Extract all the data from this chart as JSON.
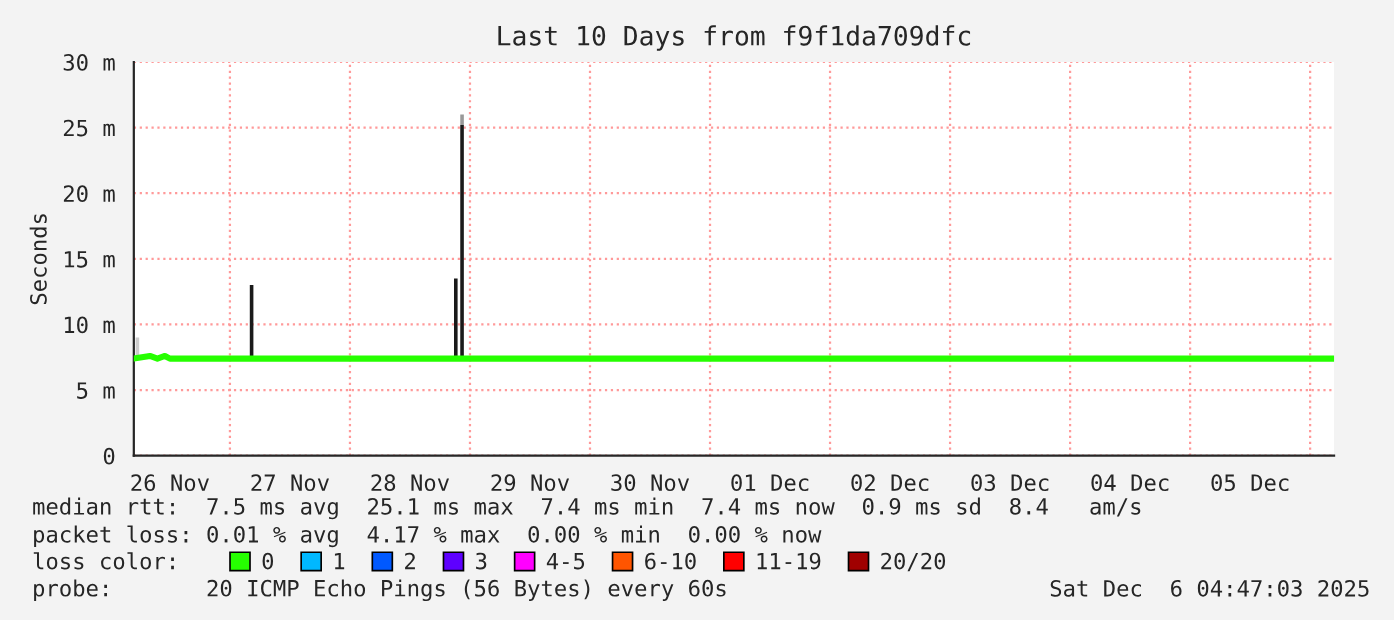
{
  "chart_data": {
    "type": "line",
    "title": "Last 10 Days from f9f1da709dfc",
    "ylabel": "Seconds",
    "xlim": [
      "2025-11-26T04:47",
      "2025-12-06T04:47"
    ],
    "xticks": [
      {
        "value": "2025-11-26T12:00",
        "label": "26 Nov"
      },
      {
        "value": "2025-11-27T00:00",
        "label": null
      },
      {
        "value": "2025-11-27T12:00",
        "label": "27 Nov"
      },
      {
        "value": "2025-11-28T00:00",
        "label": null
      },
      {
        "value": "2025-11-28T12:00",
        "label": "28 Nov"
      },
      {
        "value": "2025-11-29T00:00",
        "label": null
      },
      {
        "value": "2025-11-29T12:00",
        "label": "29 Nov"
      },
      {
        "value": "2025-11-30T00:00",
        "label": null
      },
      {
        "value": "2025-11-30T12:00",
        "label": "30 Nov"
      },
      {
        "value": "2025-12-01T00:00",
        "label": null
      },
      {
        "value": "2025-12-01T12:00",
        "label": "01 Dec"
      },
      {
        "value": "2025-12-02T00:00",
        "label": null
      },
      {
        "value": "2025-12-02T12:00",
        "label": "02 Dec"
      },
      {
        "value": "2025-12-03T00:00",
        "label": null
      },
      {
        "value": "2025-12-03T12:00",
        "label": "03 Dec"
      },
      {
        "value": "2025-12-04T00:00",
        "label": null
      },
      {
        "value": "2025-12-04T12:00",
        "label": "04 Dec"
      },
      {
        "value": "2025-12-05T00:00",
        "label": null
      },
      {
        "value": "2025-12-05T12:00",
        "label": "05 Dec"
      },
      {
        "value": "2025-12-06T00:00",
        "label": null
      }
    ],
    "ylim": [
      0,
      30
    ],
    "yticks": [
      {
        "value": 0,
        "label": "0"
      },
      {
        "value": 5,
        "label": "5 m"
      },
      {
        "value": 10,
        "label": "10 m"
      },
      {
        "value": 15,
        "label": "15 m"
      },
      {
        "value": 20,
        "label": "20 m"
      },
      {
        "value": 25,
        "label": "25 m"
      },
      {
        "value": 30,
        "label": "30 m"
      }
    ],
    "grid": true,
    "legend": "bottom",
    "series": [
      {
        "type": "bar",
        "x": [
          "2025-11-26T05:30",
          "2025-11-27T04:20",
          "2025-11-28T21:10",
          "2025-11-28T22:25"
        ],
        "base": [
          7.4,
          7.4,
          7.4,
          7.4
        ],
        "values": [
          1.6,
          5.6,
          6.1,
          17.8
        ],
        "colors": [
          "#cccccc",
          "#1a1a1a",
          "#1a1a1a",
          "#1a1a1a"
        ]
      },
      {
        "type": "bar",
        "x": [
          "2025-11-28T22:25"
        ],
        "base": [
          25.2
        ],
        "values": [
          0.8
        ],
        "colors": [
          "#999999"
        ]
      },
      {
        "name": "0",
        "color": "#26ff00",
        "x": [
          "2025-11-26T04:47",
          "2025-11-26T08:00",
          "2025-11-26T09:30",
          "2025-11-26T11:00",
          "2025-11-26T12:00",
          "2025-11-27T00:00",
          "2025-11-27T12:00",
          "2025-11-28T00:00",
          "2025-11-28T12:00",
          "2025-11-29T00:00",
          "2025-11-29T12:00",
          "2025-11-30T00:00",
          "2025-11-30T12:00",
          "2025-12-01T00:00",
          "2025-12-01T12:00",
          "2025-12-02T00:00",
          "2025-12-02T12:00",
          "2025-12-03T00:00",
          "2025-12-03T12:00",
          "2025-12-04T00:00",
          "2025-12-04T12:00",
          "2025-12-05T00:00",
          "2025-12-05T12:00",
          "2025-12-06T00:00",
          "2025-12-06T04:47"
        ],
        "values": [
          7.4,
          7.6,
          7.4,
          7.6,
          7.4,
          7.4,
          7.4,
          7.4,
          7.4,
          7.4,
          7.4,
          7.4,
          7.4,
          7.4,
          7.4,
          7.4,
          7.4,
          7.4,
          7.4,
          7.4,
          7.4,
          7.4,
          7.4,
          7.4,
          7.4
        ]
      },
      {
        "name": "1",
        "color": "#00b8ff"
      },
      {
        "name": "2",
        "color": "#0059ff"
      },
      {
        "name": "3",
        "color": "#5e00ff"
      },
      {
        "name": "4-5",
        "color": "#ff00ff"
      },
      {
        "name": "6-10",
        "color": "#ff5500"
      },
      {
        "name": "11-19",
        "color": "#ff0000"
      },
      {
        "name": "20/20",
        "color": "#a00000"
      }
    ],
    "annotations": [
      "median rtt:  7.5 ms avg  25.1 ms max  7.4 ms min  7.4 ms now  0.9 ms sd  8.4   am/s",
      "packet loss: 0.01 % avg  4.17 % max  0.00 % min  0.00 % now",
      "loss color:",
      "probe:       20 ICMP Echo Pings (56 Bytes) every 60s",
      "Sat Dec  6 04:47:03 2025"
    ]
  }
}
